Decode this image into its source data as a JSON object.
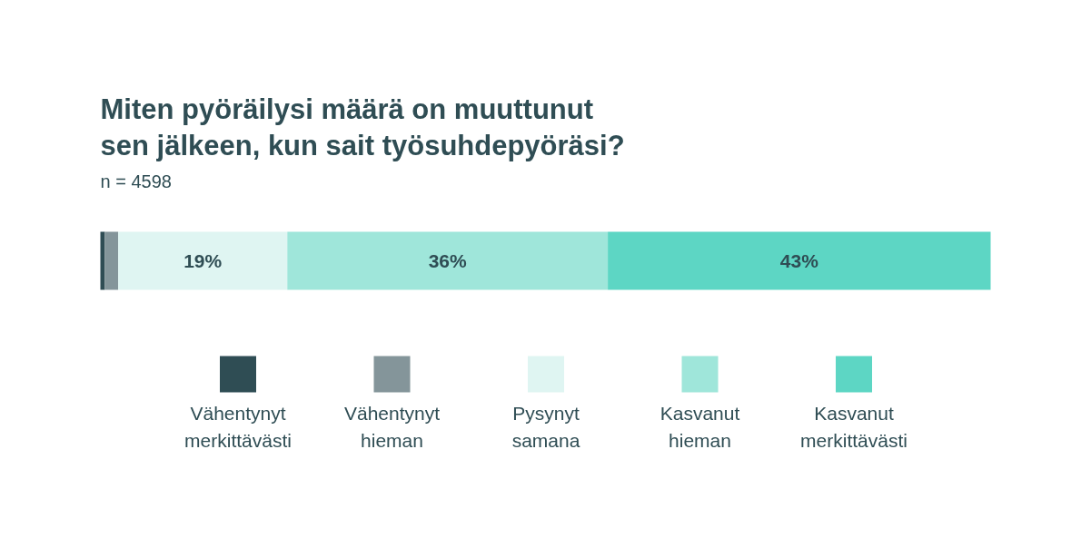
{
  "chart_data": {
    "type": "bar",
    "orientation": "horizontal",
    "stacked": true,
    "title": "Miten pyöräilysi määrä on muuttunut sen jälkeen, kun sait työsuhdepyöräsi?",
    "subtitle": "n = 4598",
    "categories": [
      null
    ],
    "series": [
      {
        "name": "Vähentynyt merkittävästi",
        "color": "#2f4d54",
        "values": [
          0.5
        ],
        "value_labels": [
          null
        ]
      },
      {
        "name": "Vähentynyt hieman",
        "color": "#84959a",
        "values": [
          1.5
        ],
        "value_labels": [
          null
        ]
      },
      {
        "name": "Pysynyt samana",
        "color": "#dff5f2",
        "values": [
          19
        ],
        "value_labels": [
          "19%"
        ]
      },
      {
        "name": "Kasvanut hieman",
        "color": "#9fe6da",
        "values": [
          36
        ],
        "value_labels": [
          "36%"
        ]
      },
      {
        "name": "Kasvanut merkittävästi",
        "color": "#5dd6c4",
        "values": [
          43
        ],
        "value_labels": [
          "43%"
        ]
      }
    ],
    "xlim": [
      0,
      100
    ],
    "tick_labels": false,
    "grid": false,
    "legend": "bottom"
  }
}
